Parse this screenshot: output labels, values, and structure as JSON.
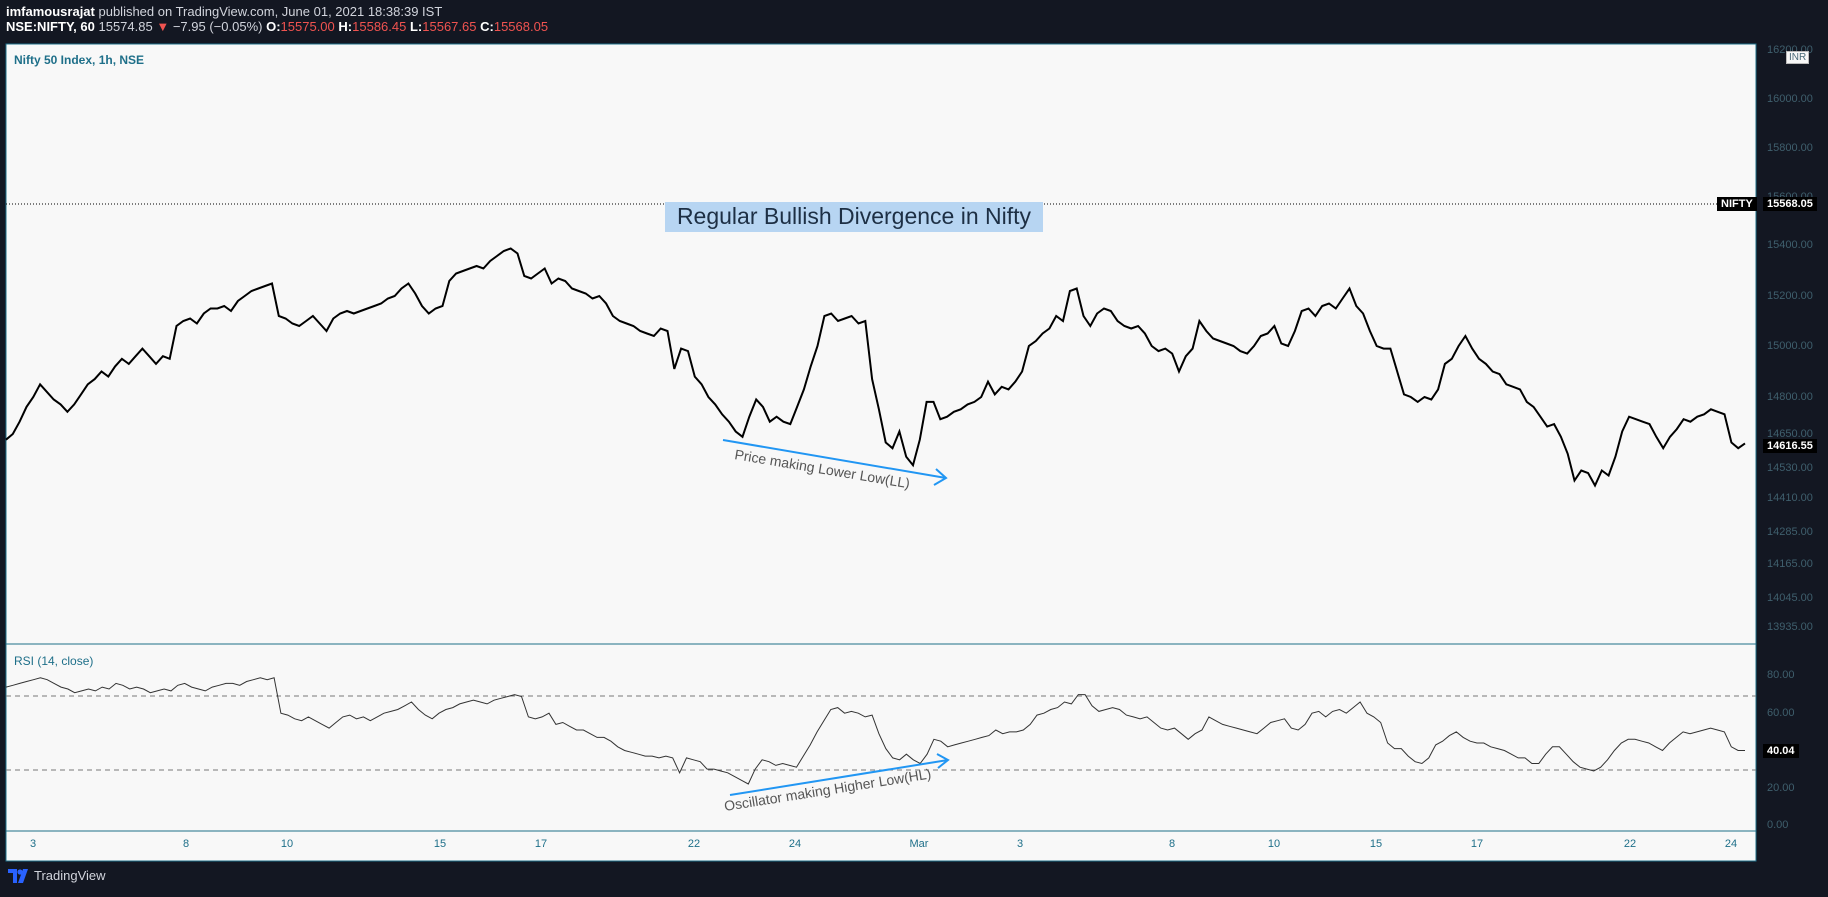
{
  "header": {
    "publisher": "imfamousrajat",
    "published_text": " published on TradingView.com, June 01, 2021 18:38:39 IST",
    "symbol": "NSE:NIFTY, 60",
    "last": "15574.85",
    "change_arrow": "▼",
    "change": "−7.95 (−0.05%)",
    "o_label": "O:",
    "o_value": "15575.00",
    "h_label": "H:",
    "h_value": "15586.45",
    "l_label": "L:",
    "l_value": "15567.65",
    "c_label": "C:",
    "c_value": "15568.05"
  },
  "main_pane": {
    "title": "Nifty 50 Index, 1h, NSE",
    "currency": "INR",
    "price_ticks": [
      "16000.00",
      "15800.00",
      "15600.00",
      "15400.00",
      "15200.00",
      "15000.00",
      "14800.00",
      "14650.00",
      "14530.00",
      "14410.00",
      "14285.00",
      "14165.00",
      "14045.00",
      "13935.00"
    ],
    "partial_top_tick": "16200.00",
    "symbol_tag": "NIFTY",
    "last_price_tag": "15568.05",
    "close_price_tag": "14616.55",
    "annotation_title": "Regular Bullish Divergence in Nifty",
    "price_note": "Price making Lower Low(LL)"
  },
  "rsi_pane": {
    "title": "RSI (14, close)",
    "ticks": [
      "80.00",
      "60.00",
      "40.00",
      "20.00",
      "0.00"
    ],
    "value_tag": "40.04",
    "osc_note": "Oscillator making Higher Low(HL)"
  },
  "x_axis": {
    "labels": [
      "3",
      "8",
      "10",
      "15",
      "17",
      "22",
      "24",
      "Mar",
      "3",
      "8",
      "10",
      "15",
      "17",
      "22",
      "24"
    ]
  },
  "footer": {
    "brand": "TradingView"
  },
  "colors": {
    "background": "#131722",
    "pane": "#f8f8f8",
    "price_line": "#000000",
    "rsi_line": "#333333",
    "arrow": "#2196f3",
    "down": "#ef5350",
    "highlight": "#b7d5f2"
  },
  "chart_data": [
    {
      "type": "line",
      "title": "Nifty 50 Index, 1h, NSE",
      "ylim": [
        13935,
        16200
      ],
      "series": [
        {
          "name": "NIFTY",
          "values": [
            14630,
            14650,
            14700,
            14760,
            14800,
            14850,
            14820,
            14790,
            14770,
            14740,
            14770,
            14810,
            14850,
            14870,
            14900,
            14880,
            14920,
            14950,
            14930,
            14960,
            14990,
            14960,
            14930,
            14960,
            14950,
            15080,
            15100,
            15110,
            15090,
            15130,
            15150,
            15150,
            15160,
            15140,
            15180,
            15200,
            15220,
            15230,
            15240,
            15250,
            15120,
            15110,
            15090,
            15080,
            15100,
            15120,
            15090,
            15060,
            15110,
            15130,
            15140,
            15130,
            15140,
            15150,
            15160,
            15170,
            15190,
            15200,
            15230,
            15250,
            15210,
            15160,
            15130,
            15150,
            15160,
            15260,
            15290,
            15300,
            15310,
            15320,
            15310,
            15340,
            15360,
            15380,
            15390,
            15370,
            15280,
            15270,
            15290,
            15310,
            15250,
            15270,
            15260,
            15230,
            15220,
            15210,
            15190,
            15200,
            15170,
            15120,
            15100,
            15090,
            15080,
            15060,
            15050,
            15040,
            15070,
            15060,
            14910,
            14990,
            14980,
            14880,
            14850,
            14800,
            14770,
            14730,
            14700,
            14660,
            14640,
            14720,
            14790,
            14760,
            14700,
            14720,
            14700,
            14690,
            14760,
            14830,
            14920,
            15000,
            15120,
            15130,
            15100,
            15110,
            15120,
            15090,
            15100,
            14870,
            14750,
            14620,
            14600,
            14660,
            14570,
            14540,
            14630,
            14780,
            14780,
            14710,
            14720,
            14740,
            14750,
            14770,
            14780,
            14800,
            14860,
            14810,
            14840,
            14830,
            14860,
            14900,
            15000,
            15020,
            15050,
            15070,
            15120,
            15100,
            15220,
            15230,
            15120,
            15080,
            15130,
            15150,
            15140,
            15100,
            15080,
            15070,
            15080,
            15050,
            15000,
            14980,
            14990,
            14970,
            14900,
            14960,
            14990,
            15100,
            15060,
            15030,
            15020,
            15010,
            15000,
            14980,
            14970,
            15000,
            15040,
            15050,
            15080,
            15010,
            15000,
            15060,
            15140,
            15150,
            15120,
            15160,
            15170,
            15150,
            15190,
            15230,
            15160,
            15130,
            15060,
            15000,
            14990,
            14990,
            14900,
            14810,
            14800,
            14780,
            14800,
            14790,
            14830,
            14930,
            14950,
            15000,
            15040,
            14990,
            14950,
            14930,
            14900,
            14890,
            14850,
            14840,
            14830,
            14780,
            14760,
            14720,
            14680,
            14690,
            14640,
            14580,
            14480,
            14520,
            14510,
            14460,
            14520,
            14500,
            14570,
            14660,
            14720,
            14710,
            14700,
            14690,
            14640,
            14600,
            14640,
            14670,
            14710,
            14700,
            14720,
            14730,
            14750,
            14740,
            14730,
            14620,
            14600,
            14617
          ]
        }
      ]
    },
    {
      "type": "line",
      "title": "RSI (14, close)",
      "ylim": [
        0,
        90
      ],
      "series": [
        {
          "name": "RSI",
          "values": [
            74,
            75,
            76,
            77,
            78,
            79,
            78,
            76,
            74,
            73,
            71,
            72,
            73,
            72,
            74,
            73,
            76,
            75,
            73,
            74,
            73,
            71,
            72,
            73,
            72,
            75,
            76,
            74,
            73,
            72,
            74,
            75,
            76,
            76,
            75,
            77,
            78,
            79,
            78,
            79,
            60,
            59,
            57,
            56,
            58,
            56,
            54,
            52,
            55,
            58,
            59,
            57,
            58,
            56,
            58,
            60,
            61,
            62,
            64,
            66,
            62,
            59,
            57,
            60,
            62,
            63,
            65,
            66,
            67,
            66,
            65,
            67,
            68,
            69,
            70,
            69,
            58,
            57,
            58,
            60,
            54,
            55,
            53,
            51,
            51,
            49,
            47,
            47,
            45,
            42,
            40,
            39,
            38,
            37,
            37,
            36,
            37,
            36,
            28,
            36,
            35,
            34,
            30,
            30,
            29,
            28,
            26,
            24,
            22,
            30,
            35,
            34,
            32,
            33,
            32,
            31,
            37,
            43,
            50,
            56,
            62,
            63,
            60,
            61,
            60,
            58,
            59,
            49,
            41,
            36,
            35,
            38,
            35,
            33,
            38,
            46,
            45,
            42,
            43,
            44,
            45,
            46,
            47,
            48,
            51,
            49,
            50,
            50,
            51,
            54,
            59,
            60,
            62,
            63,
            66,
            65,
            70,
            70,
            64,
            61,
            62,
            63,
            62,
            59,
            58,
            57,
            58,
            55,
            52,
            51,
            52,
            49,
            46,
            49,
            51,
            58,
            56,
            54,
            53,
            52,
            51,
            50,
            49,
            52,
            55,
            56,
            57,
            52,
            51,
            54,
            60,
            61,
            58,
            61,
            62,
            60,
            63,
            66,
            60,
            58,
            55,
            44,
            41,
            41,
            37,
            34,
            33,
            36,
            43,
            45,
            48,
            50,
            47,
            45,
            44,
            44,
            42,
            41,
            40,
            38,
            36,
            36,
            33,
            33,
            38,
            42,
            42,
            38,
            34,
            31,
            30,
            29,
            31,
            35,
            40,
            44,
            46,
            46,
            45,
            44,
            42,
            40,
            44,
            47,
            50,
            49,
            50,
            51,
            52,
            51,
            50,
            42,
            40,
            40
          ]
        }
      ]
    }
  ]
}
